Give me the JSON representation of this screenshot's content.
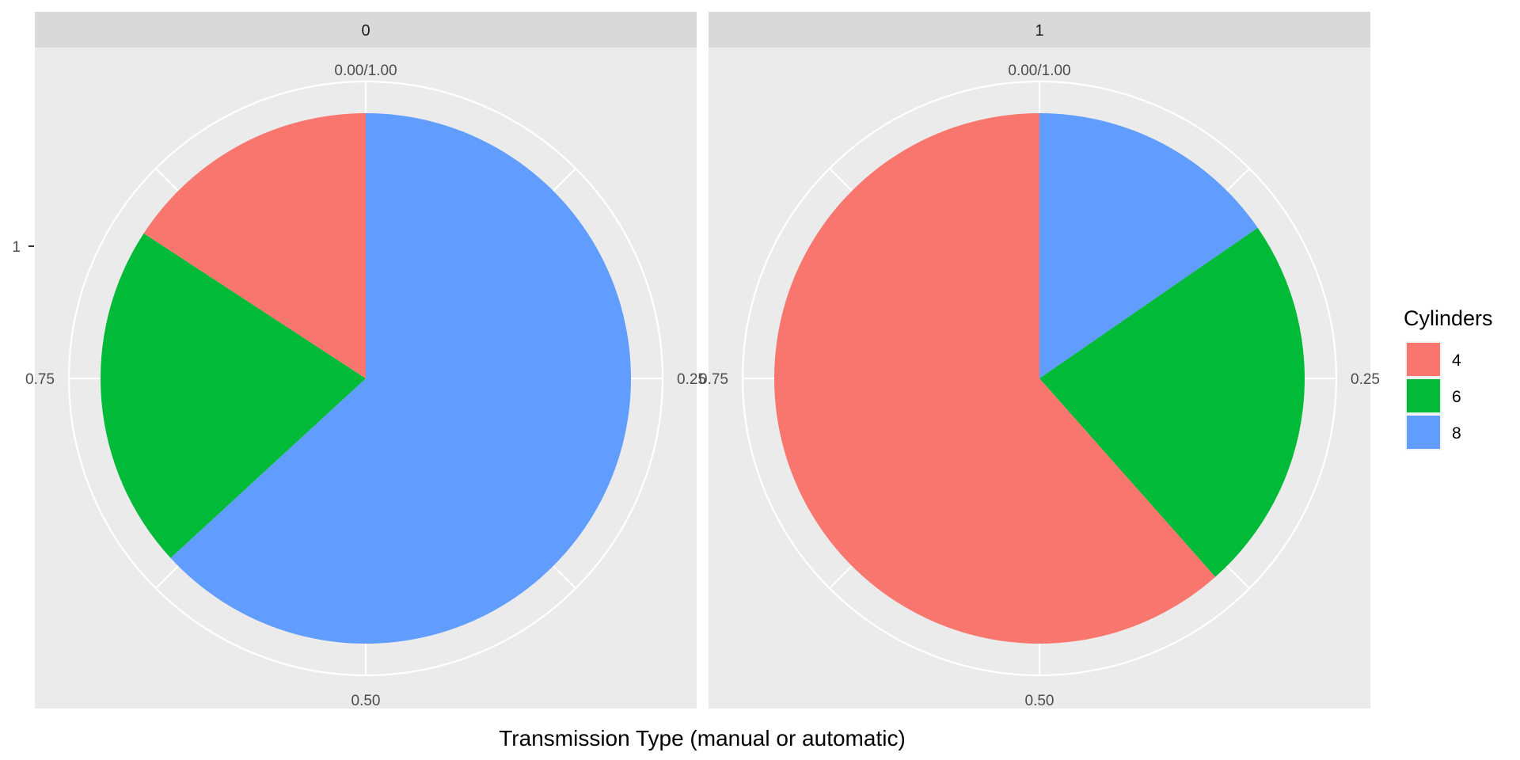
{
  "chart_data": {
    "type": "pie",
    "xlabel": "Transmission Type (manual or automatic)",
    "y_tick_label": "1",
    "theta_ticks": [
      "0.00/1.00",
      "0.25",
      "0.50",
      "0.75"
    ],
    "legend": {
      "title": "Cylinders",
      "position": "right"
    },
    "categories": [
      "4",
      "6",
      "8"
    ],
    "colors": {
      "4": "#F8766D",
      "6": "#00BA38",
      "8": "#619CFF"
    },
    "facets": [
      {
        "strip": "0",
        "counts": {
          "8": 12,
          "6": 4,
          "4": 3
        },
        "total": 19
      },
      {
        "strip": "1",
        "counts": {
          "8": 2,
          "6": 3,
          "4": 8
        },
        "total": 13
      }
    ]
  }
}
